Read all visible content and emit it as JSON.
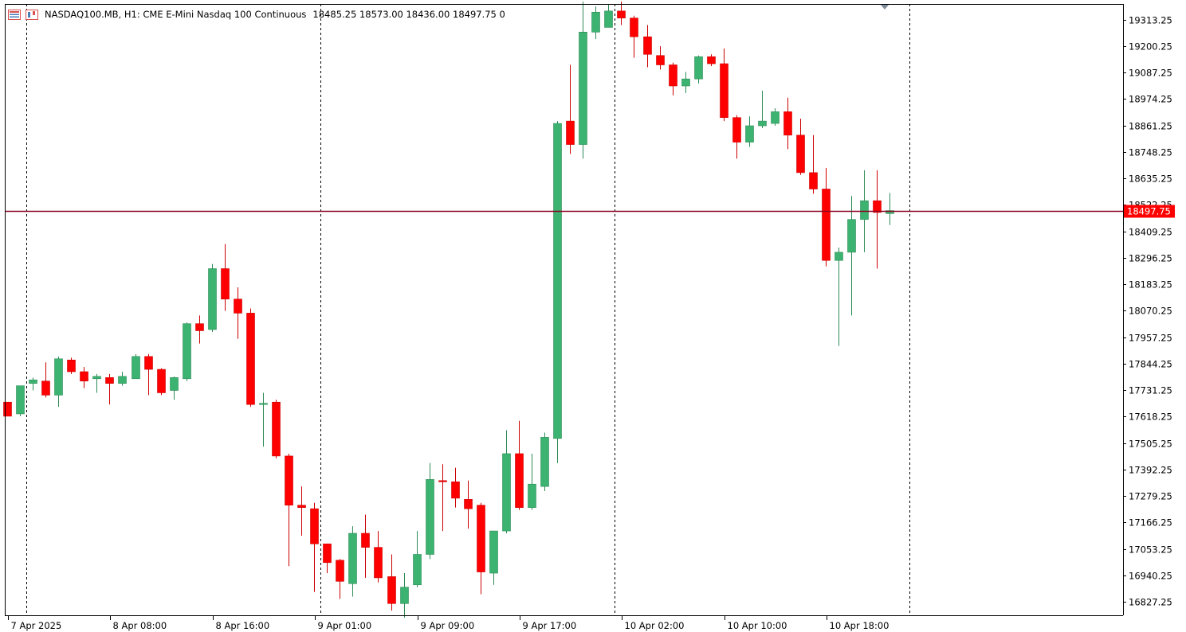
{
  "header": {
    "symbol_line": "NASDAQ100.MB, H1:  CME E-Mini Nasdaq 100 Continuous",
    "ohlc_line": "18485.25 18573.00 18436.00 18497.75  0",
    "icons": [
      "chart-window-icon",
      "chart-settings-icon"
    ]
  },
  "colors": {
    "bull": "#3cb371",
    "bull_border": "#2e8b57",
    "bear": "#ff0000",
    "bear_border": "#cc0000",
    "price_line": "#8b0020",
    "price_label_bg": "#ff0000",
    "grid_separator": "#000000",
    "axis_text": "#000000"
  },
  "chart_data": {
    "type": "candlestick",
    "title": "NASDAQ100.MB, H1:  CME E-Mini Nasdaq 100 Continuous",
    "timeframe": "H1",
    "ylim": [
      16770,
      19380
    ],
    "y_ticks": [
      "19313.25",
      "19200.25",
      "19087.25",
      "18974.25",
      "18861.25",
      "18748.25",
      "18635.25",
      "18522.25",
      "18409.25",
      "18296.25",
      "18183.25",
      "18070.25",
      "17957.25",
      "17844.25",
      "17731.25",
      "17618.25",
      "17505.25",
      "17392.25",
      "17279.25",
      "17166.25",
      "17053.25",
      "16940.25",
      "16827.25"
    ],
    "x_tick_labels": [
      {
        "index": 1,
        "label": "7 Apr 2025"
      },
      {
        "index": 9,
        "label": "8 Apr 08:00"
      },
      {
        "index": 17,
        "label": "8 Apr 16:00"
      },
      {
        "index": 25,
        "label": "9 Apr 01:00"
      },
      {
        "index": 33,
        "label": "9 Apr 09:00"
      },
      {
        "index": 41,
        "label": "9 Apr 17:00"
      },
      {
        "index": 49,
        "label": "10 Apr 02:00"
      },
      {
        "index": 57,
        "label": "10 Apr 10:00"
      },
      {
        "index": 65,
        "label": "10 Apr 18:00"
      }
    ],
    "day_separators_after_index": [
      1,
      24,
      47,
      70
    ],
    "current_price": 18497.75,
    "current_price_label": "18497.75",
    "candles": [
      [
        17680,
        17620,
        17620,
        17680
      ],
      [
        17630,
        17750,
        17620,
        17750
      ],
      [
        17760,
        17775,
        17730,
        17785
      ],
      [
        17770,
        17710,
        17700,
        17850
      ],
      [
        17710,
        17865,
        17660,
        17875
      ],
      [
        17860,
        17810,
        17800,
        17870
      ],
      [
        17810,
        17770,
        17740,
        17830
      ],
      [
        17780,
        17790,
        17720,
        17800
      ],
      [
        17785,
        17760,
        17670,
        17800
      ],
      [
        17760,
        17790,
        17750,
        17810
      ],
      [
        17780,
        17875,
        17780,
        17885
      ],
      [
        17875,
        17820,
        17710,
        17885
      ],
      [
        17820,
        17720,
        17710,
        17825
      ],
      [
        17730,
        17785,
        17690,
        17790
      ],
      [
        17780,
        18015,
        17770,
        18020
      ],
      [
        18015,
        17985,
        17930,
        18050
      ],
      [
        17990,
        18250,
        17980,
        18270
      ],
      [
        18250,
        18120,
        18070,
        18355
      ],
      [
        18120,
        18060,
        17950,
        18170
      ],
      [
        18060,
        17670,
        17660,
        18080
      ],
      [
        17670,
        17675,
        17490,
        17720
      ],
      [
        17680,
        17450,
        17440,
        17690
      ],
      [
        17450,
        17240,
        16980,
        17460
      ],
      [
        17240,
        17230,
        17110,
        17320
      ],
      [
        17225,
        17075,
        16870,
        17250
      ],
      [
        17075,
        16995,
        16950,
        17070
      ],
      [
        17005,
        16915,
        16840,
        17010
      ],
      [
        16905,
        17120,
        16850,
        17150
      ],
      [
        17120,
        17060,
        16930,
        17200
      ],
      [
        17060,
        16930,
        16910,
        17130
      ],
      [
        16935,
        16820,
        16790,
        17030
      ],
      [
        16820,
        16890,
        16760,
        16950
      ],
      [
        16900,
        17030,
        16890,
        17130
      ],
      [
        17030,
        17350,
        17010,
        17420
      ],
      [
        17345,
        17340,
        17130,
        17415
      ],
      [
        17340,
        17270,
        17230,
        17400
      ],
      [
        17265,
        17225,
        17140,
        17345
      ],
      [
        17240,
        16955,
        16860,
        17250
      ],
      [
        16950,
        17130,
        16900,
        17130
      ],
      [
        17130,
        17460,
        17120,
        17560
      ],
      [
        17460,
        17230,
        17220,
        17600
      ],
      [
        17230,
        17330,
        17220,
        17460
      ],
      [
        17320,
        17530,
        17300,
        17550
      ],
      [
        17525,
        18870,
        17420,
        18880
      ],
      [
        18880,
        18780,
        18740,
        19120
      ],
      [
        18780,
        19260,
        18720,
        19390
      ],
      [
        19260,
        19345,
        19230,
        19370
      ],
      [
        19280,
        19350,
        19280,
        19380
      ],
      [
        19350,
        19320,
        19290,
        19390
      ],
      [
        19320,
        19240,
        19150,
        19330
      ],
      [
        19240,
        19165,
        19110,
        19290
      ],
      [
        19160,
        19120,
        19100,
        19200
      ],
      [
        19120,
        19030,
        18990,
        19130
      ],
      [
        19030,
        19060,
        19000,
        19090
      ],
      [
        19060,
        19155,
        19040,
        19160
      ],
      [
        19155,
        19125,
        19115,
        19165
      ],
      [
        19125,
        18895,
        18880,
        19190
      ],
      [
        18895,
        18790,
        18720,
        18905
      ],
      [
        18790,
        18860,
        18770,
        18900
      ],
      [
        18860,
        18880,
        18850,
        19010
      ],
      [
        18870,
        18920,
        18860,
        18935
      ],
      [
        18920,
        18820,
        18760,
        18980
      ],
      [
        18820,
        18660,
        18650,
        18890
      ],
      [
        18660,
        18590,
        18570,
        18820
      ],
      [
        18590,
        18285,
        18260,
        18680
      ],
      [
        18285,
        18320,
        17920,
        18340
      ],
      [
        18320,
        18460,
        18050,
        18560
      ],
      [
        18460,
        18540,
        18320,
        18670
      ],
      [
        18540,
        18490,
        18250,
        18670
      ],
      [
        18485,
        18497.75,
        18436,
        18573
      ]
    ]
  }
}
